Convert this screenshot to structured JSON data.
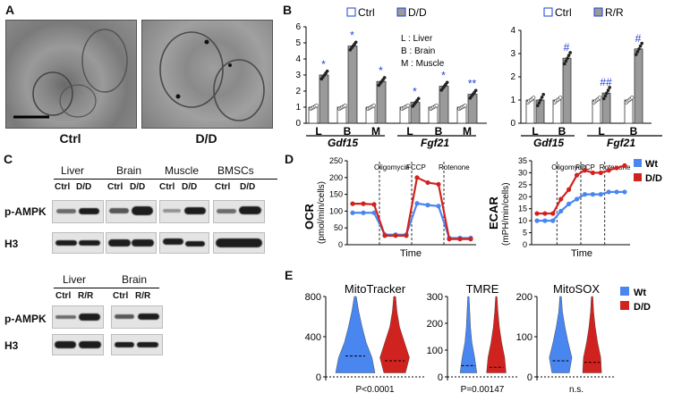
{
  "panels": {
    "a": "A",
    "b": "B",
    "c": "C",
    "d": "D",
    "e": "E"
  },
  "panelA": {
    "label_ctrl": "Ctrl",
    "label_dd": "D/D"
  },
  "panelB": {
    "legend1": {
      "ctrl": "Ctrl",
      "dd": "D/D"
    },
    "legend2": {
      "ctrl": "Ctrl",
      "rr": "R/R"
    },
    "key": [
      "L : Liver",
      "B : Brain",
      "M : Muscle"
    ],
    "gene1": "Gdf15",
    "gene2": "Fgf21",
    "x1": [
      "L",
      "B",
      "M",
      "L",
      "B",
      "M"
    ],
    "x2": [
      "L",
      "B",
      "L",
      "B"
    ],
    "ticks1": [
      "0",
      "1",
      "2",
      "3",
      "4",
      "5",
      "6"
    ],
    "ticks2": [
      "0",
      "1",
      "2",
      "3",
      "4"
    ],
    "stars1": [
      "*",
      "*",
      "*",
      "*",
      "*",
      "**"
    ],
    "stars2": [
      "#",
      "##",
      "#"
    ]
  },
  "chart_data": [
    {
      "type": "bar",
      "categories": [
        "Gdf15-L",
        "Gdf15-B",
        "Gdf15-M",
        "Fgf21-L",
        "Fgf21-B",
        "Fgf21-M"
      ],
      "series": [
        {
          "name": "Ctrl",
          "values": [
            1.0,
            1.0,
            1.0,
            1.0,
            1.0,
            1.0
          ]
        },
        {
          "name": "D/D",
          "values": [
            3.0,
            4.8,
            2.6,
            1.3,
            2.3,
            1.8
          ]
        }
      ],
      "ylim": [
        0,
        6
      ]
    },
    {
      "type": "bar",
      "categories": [
        "Gdf15-L",
        "Gdf15-B",
        "Fgf21-L",
        "Fgf21-B"
      ],
      "series": [
        {
          "name": "Ctrl",
          "values": [
            1.0,
            1.0,
            1.0,
            1.0
          ]
        },
        {
          "name": "R/R",
          "values": [
            1.0,
            2.8,
            1.3,
            3.2
          ]
        }
      ],
      "ylim": [
        0,
        4
      ]
    },
    {
      "type": "line",
      "ylabel": "OCR (pmol/min/cells)",
      "xlabel": "Time",
      "ylim": [
        0,
        250
      ],
      "yticks": [
        "0",
        "50",
        "100",
        "150",
        "200",
        "250"
      ],
      "markers": [
        "Oligomycin",
        "FCCP",
        "Rotenone"
      ],
      "series": [
        {
          "name": "Wt",
          "values": [
            95,
            95,
            95,
            30,
            30,
            30,
            123,
            118,
            115,
            20,
            20,
            20
          ]
        },
        {
          "name": "D/D",
          "values": [
            122,
            122,
            120,
            27,
            27,
            27,
            200,
            185,
            180,
            17,
            17,
            17
          ]
        }
      ]
    },
    {
      "type": "line",
      "ylabel": "ECAR (mPH/min/cells)",
      "xlabel": "Time",
      "ylim": [
        0,
        35
      ],
      "yticks": [
        "0",
        "5",
        "10",
        "15",
        "20",
        "25",
        "30",
        "35"
      ],
      "markers": [
        "Oligomycin",
        "FCCP",
        "Rotenone"
      ],
      "series": [
        {
          "name": "Wt",
          "values": [
            10,
            10,
            10,
            14,
            17,
            19,
            21,
            21,
            21,
            22,
            22,
            22
          ]
        },
        {
          "name": "D/D",
          "values": [
            13,
            13,
            13,
            19,
            23,
            29,
            31,
            30,
            30,
            31,
            32,
            33
          ]
        }
      ]
    },
    {
      "type": "violin",
      "title": "MitoTracker",
      "yticks": [
        "0",
        "400",
        "800"
      ],
      "series": [
        {
          "name": "Wt"
        },
        {
          "name": "D/D"
        }
      ],
      "annotation": "P<0.0001"
    },
    {
      "type": "violin",
      "title": "TMRE",
      "yticks": [
        "0",
        "100",
        "200",
        "300"
      ],
      "series": [
        {
          "name": "Wt"
        },
        {
          "name": "D/D"
        }
      ],
      "annotation": "P=0.00147"
    },
    {
      "type": "violin",
      "title": "MitoSOX",
      "yticks": [
        "0",
        "100",
        "200"
      ],
      "series": [
        {
          "name": "Wt"
        },
        {
          "name": "D/D"
        }
      ],
      "annotation": "n.s."
    }
  ],
  "panelC": {
    "groups": [
      "Liver",
      "Brain",
      "Muscle",
      "BMSCs"
    ],
    "subs": [
      "Ctrl",
      "D/D"
    ],
    "rows": [
      "p-AMPK",
      "H3"
    ],
    "groups2": [
      "Liver",
      "Brain"
    ],
    "subs2": [
      "Ctrl",
      "R/R"
    ]
  },
  "panelD": {
    "legend": [
      "Wt",
      "D/D"
    ],
    "ocr": "OCR",
    "ocr_unit": "(pmol/min/cells)",
    "ecar": "ECAR",
    "ecar_unit": "(mPH/min/cells)",
    "time": "Time"
  },
  "panelE": {
    "legend": [
      "Wt",
      "D/D"
    ]
  },
  "colors": {
    "wt": "#4a86f0",
    "dd": "#d0231f",
    "bar_dd": "#9a9a9a",
    "blue_text": "#1f3fd6"
  }
}
